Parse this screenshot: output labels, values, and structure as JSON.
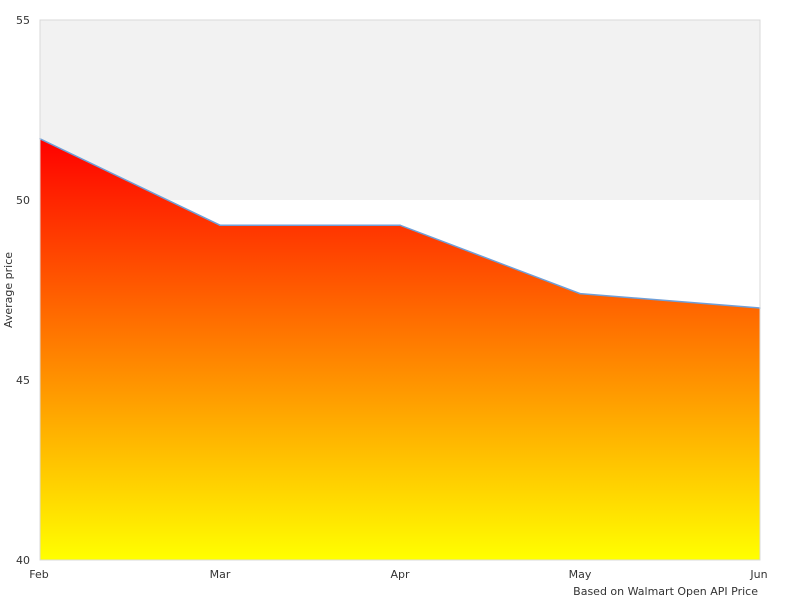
{
  "chart_data": {
    "type": "area",
    "categories": [
      "Feb",
      "Mar",
      "Apr",
      "May",
      "Jun"
    ],
    "series": [
      {
        "values": [
          51.7,
          49.3,
          49.3,
          47.4,
          47.0
        ]
      }
    ],
    "ylim": [
      40,
      55
    ],
    "yticks": [
      40,
      45,
      50,
      55
    ],
    "xlabel": "",
    "ylabel": "Average price",
    "note": "Based on Walmart Open API Price",
    "gradient": {
      "top": "#ff0000",
      "bottom": "#ffff00"
    },
    "line_color": "#6f9fd8",
    "band": {
      "from": 50,
      "to": 55,
      "color": "#f2f2f2"
    },
    "frame_color": "#d9d9d9"
  }
}
